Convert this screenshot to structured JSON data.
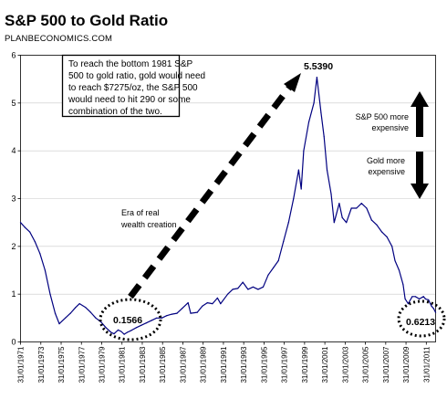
{
  "chart_data": {
    "type": "line",
    "title": "S&P 500 to Gold Ratio",
    "subtitle": "PLANBECONOMICS.COM",
    "ylim": [
      0,
      6
    ],
    "yticks": [
      "0",
      "1",
      "2",
      "3",
      "4",
      "5",
      "6"
    ],
    "xticks": [
      "31/01/1971",
      "31/01/1973",
      "31/01/1975",
      "31/01/1977",
      "31/01/1979",
      "31/01/1981",
      "31/01/1983",
      "31/01/1985",
      "31/01/1987",
      "31/01/1989",
      "31/01/1991",
      "31/01/1993",
      "31/01/1995",
      "31/01/1997",
      "31/01/1999",
      "31/01/2001",
      "31/01/2003",
      "31/01/2005",
      "31/01/2007",
      "31/01/2009",
      "31/01/2011"
    ],
    "xrange": [
      1971.08,
      2012.0
    ],
    "grid": "horizontal",
    "series": [
      {
        "color": "#000080",
        "x": [
          1971.08,
          1971.5,
          1972.0,
          1972.5,
          1973.0,
          1973.5,
          1974.0,
          1974.5,
          1974.9,
          1975.5,
          1976.0,
          1976.5,
          1976.9,
          1977.5,
          1978.0,
          1978.5,
          1979.0,
          1979.5,
          1980.0,
          1980.3,
          1980.7,
          1981.0,
          1981.3,
          1981.6,
          1982.0,
          1982.5,
          1983.0,
          1983.5,
          1984.0,
          1984.5,
          1985.0,
          1985.5,
          1986.0,
          1986.5,
          1987.0,
          1987.6,
          1987.85,
          1988.5,
          1989.0,
          1989.5,
          1990.0,
          1990.5,
          1990.8,
          1991.5,
          1992.0,
          1992.5,
          1993.0,
          1993.5,
          1994.0,
          1994.5,
          1995.0,
          1995.5,
          1996.0,
          1996.5,
          1997.0,
          1997.5,
          1998.0,
          1998.5,
          1998.75,
          1999.0,
          1999.5,
          2000.0,
          2000.3,
          2000.7,
          2001.0,
          2001.3,
          2001.7,
          2002.0,
          2002.5,
          2002.8,
          2003.2,
          2003.7,
          2004.2,
          2004.7,
          2005.2,
          2005.7,
          2006.2,
          2006.7,
          2007.2,
          2007.7,
          2008.0,
          2008.4,
          2008.8,
          2009.0,
          2009.3,
          2009.7,
          2010.0,
          2010.4,
          2010.8,
          2011.0,
          2011.3,
          2011.6,
          2011.8,
          2012.0
        ],
        "y": [
          2.5,
          2.4,
          2.3,
          2.1,
          1.85,
          1.5,
          1.0,
          0.6,
          0.38,
          0.5,
          0.6,
          0.72,
          0.8,
          0.72,
          0.62,
          0.5,
          0.42,
          0.3,
          0.2,
          0.17,
          0.25,
          0.22,
          0.16,
          0.2,
          0.24,
          0.3,
          0.35,
          0.4,
          0.45,
          0.5,
          0.5,
          0.55,
          0.58,
          0.6,
          0.7,
          0.82,
          0.6,
          0.62,
          0.75,
          0.82,
          0.8,
          0.92,
          0.8,
          1.0,
          1.1,
          1.12,
          1.25,
          1.1,
          1.15,
          1.1,
          1.15,
          1.4,
          1.55,
          1.7,
          2.1,
          2.5,
          3.0,
          3.6,
          3.2,
          4.0,
          4.6,
          5.0,
          5.539,
          4.8,
          4.3,
          3.6,
          3.1,
          2.5,
          2.9,
          2.6,
          2.5,
          2.8,
          2.8,
          2.9,
          2.8,
          2.55,
          2.45,
          2.3,
          2.2,
          2.0,
          1.7,
          1.5,
          1.2,
          0.9,
          0.8,
          0.95,
          0.95,
          0.9,
          0.95,
          0.9,
          0.88,
          0.75,
          0.7,
          0.62
        ]
      }
    ],
    "annotations": {
      "note_box": [
        "To reach the bottom 1981 S&P",
        "500 to gold ratio, gold would need",
        "to reach $7275/oz, the S&P 500",
        "would need to hit 290 or some",
        "combination of the two."
      ],
      "peak_value": "5.5390",
      "low_value": "0.1566",
      "end_value": "0.6213",
      "era_text": [
        "Era of real",
        "wealth creation"
      ],
      "up_text": [
        "S&P 500 more",
        "expensive"
      ],
      "down_text": [
        "Gold more",
        "expensive"
      ]
    }
  }
}
